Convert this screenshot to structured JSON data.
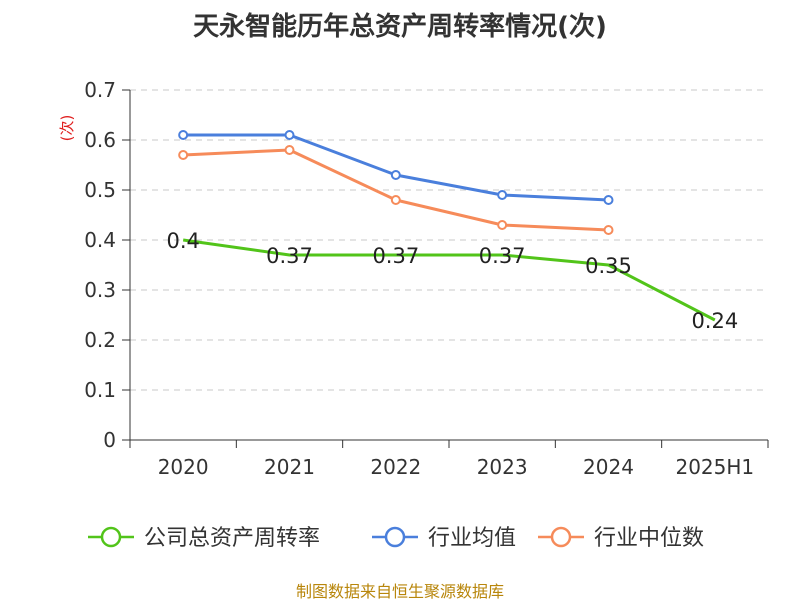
{
  "chart_data": {
    "type": "line",
    "title": "天永智能历年总资产周转率情况(次)",
    "ylabel": "(次)",
    "xlabel": "",
    "categories": [
      "2020",
      "2021",
      "2022",
      "2023",
      "2024",
      "2025H1"
    ],
    "ylim": [
      0,
      0.7
    ],
    "yticks": [
      "0",
      "0.1",
      "0.2",
      "0.3",
      "0.4",
      "0.5",
      "0.6",
      "0.7"
    ],
    "grid": true,
    "legend_position": "bottom",
    "series": [
      {
        "name": "公司总资产周转率",
        "color": "#52c41a",
        "values": [
          0.4,
          0.37,
          0.37,
          0.37,
          0.35,
          0.24
        ],
        "labels": [
          "0.4",
          "0.37",
          "0.37",
          "0.37",
          "0.35",
          "0.24"
        ]
      },
      {
        "name": "行业均值",
        "color": "#4a7fdc",
        "values": [
          0.61,
          0.61,
          0.53,
          0.49,
          0.48,
          null
        ]
      },
      {
        "name": "行业中位数",
        "color": "#f68b5a",
        "values": [
          0.57,
          0.58,
          0.48,
          0.43,
          0.42,
          null
        ]
      }
    ]
  },
  "source": "制图数据来自恒生聚源数据库"
}
